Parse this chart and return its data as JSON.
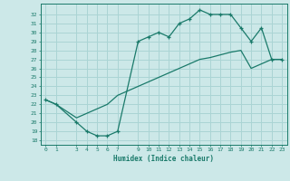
{
  "title": "",
  "xlabel": "Humidex (Indice chaleur)",
  "background_color": "#cce8e8",
  "line_color": "#1a7a6a",
  "grid_color": "#aad4d4",
  "xlim": [
    -0.5,
    23.5
  ],
  "ylim": [
    17.5,
    33.2
  ],
  "xticks": [
    0,
    1,
    3,
    4,
    5,
    6,
    7,
    9,
    10,
    11,
    12,
    13,
    14,
    15,
    16,
    17,
    18,
    19,
    20,
    21,
    22,
    23
  ],
  "yticks": [
    18,
    19,
    20,
    21,
    22,
    23,
    24,
    25,
    26,
    27,
    28,
    29,
    30,
    31,
    32
  ],
  "curve1_x": [
    0,
    1,
    3,
    4,
    5,
    6,
    7,
    9,
    10,
    11,
    12,
    13,
    14,
    15,
    16,
    17,
    18,
    19,
    20,
    21,
    22,
    23
  ],
  "curve1_y": [
    22.5,
    22.0,
    20.0,
    19.0,
    18.5,
    18.5,
    19.0,
    29.0,
    29.5,
    30.0,
    29.5,
    31.0,
    31.5,
    32.5,
    32.0,
    32.0,
    32.0,
    30.5,
    29.0,
    30.5,
    27.0,
    27.0
  ],
  "curve2_x": [
    0,
    1,
    3,
    4,
    5,
    6,
    7,
    9,
    10,
    11,
    12,
    13,
    14,
    15,
    16,
    17,
    18,
    19,
    20,
    21,
    22,
    23
  ],
  "curve2_y": [
    22.5,
    22.0,
    20.5,
    21.0,
    21.5,
    22.0,
    23.0,
    24.0,
    24.5,
    25.0,
    25.5,
    26.0,
    26.5,
    27.0,
    27.2,
    27.5,
    27.8,
    28.0,
    26.0,
    26.5,
    27.0,
    27.0
  ]
}
